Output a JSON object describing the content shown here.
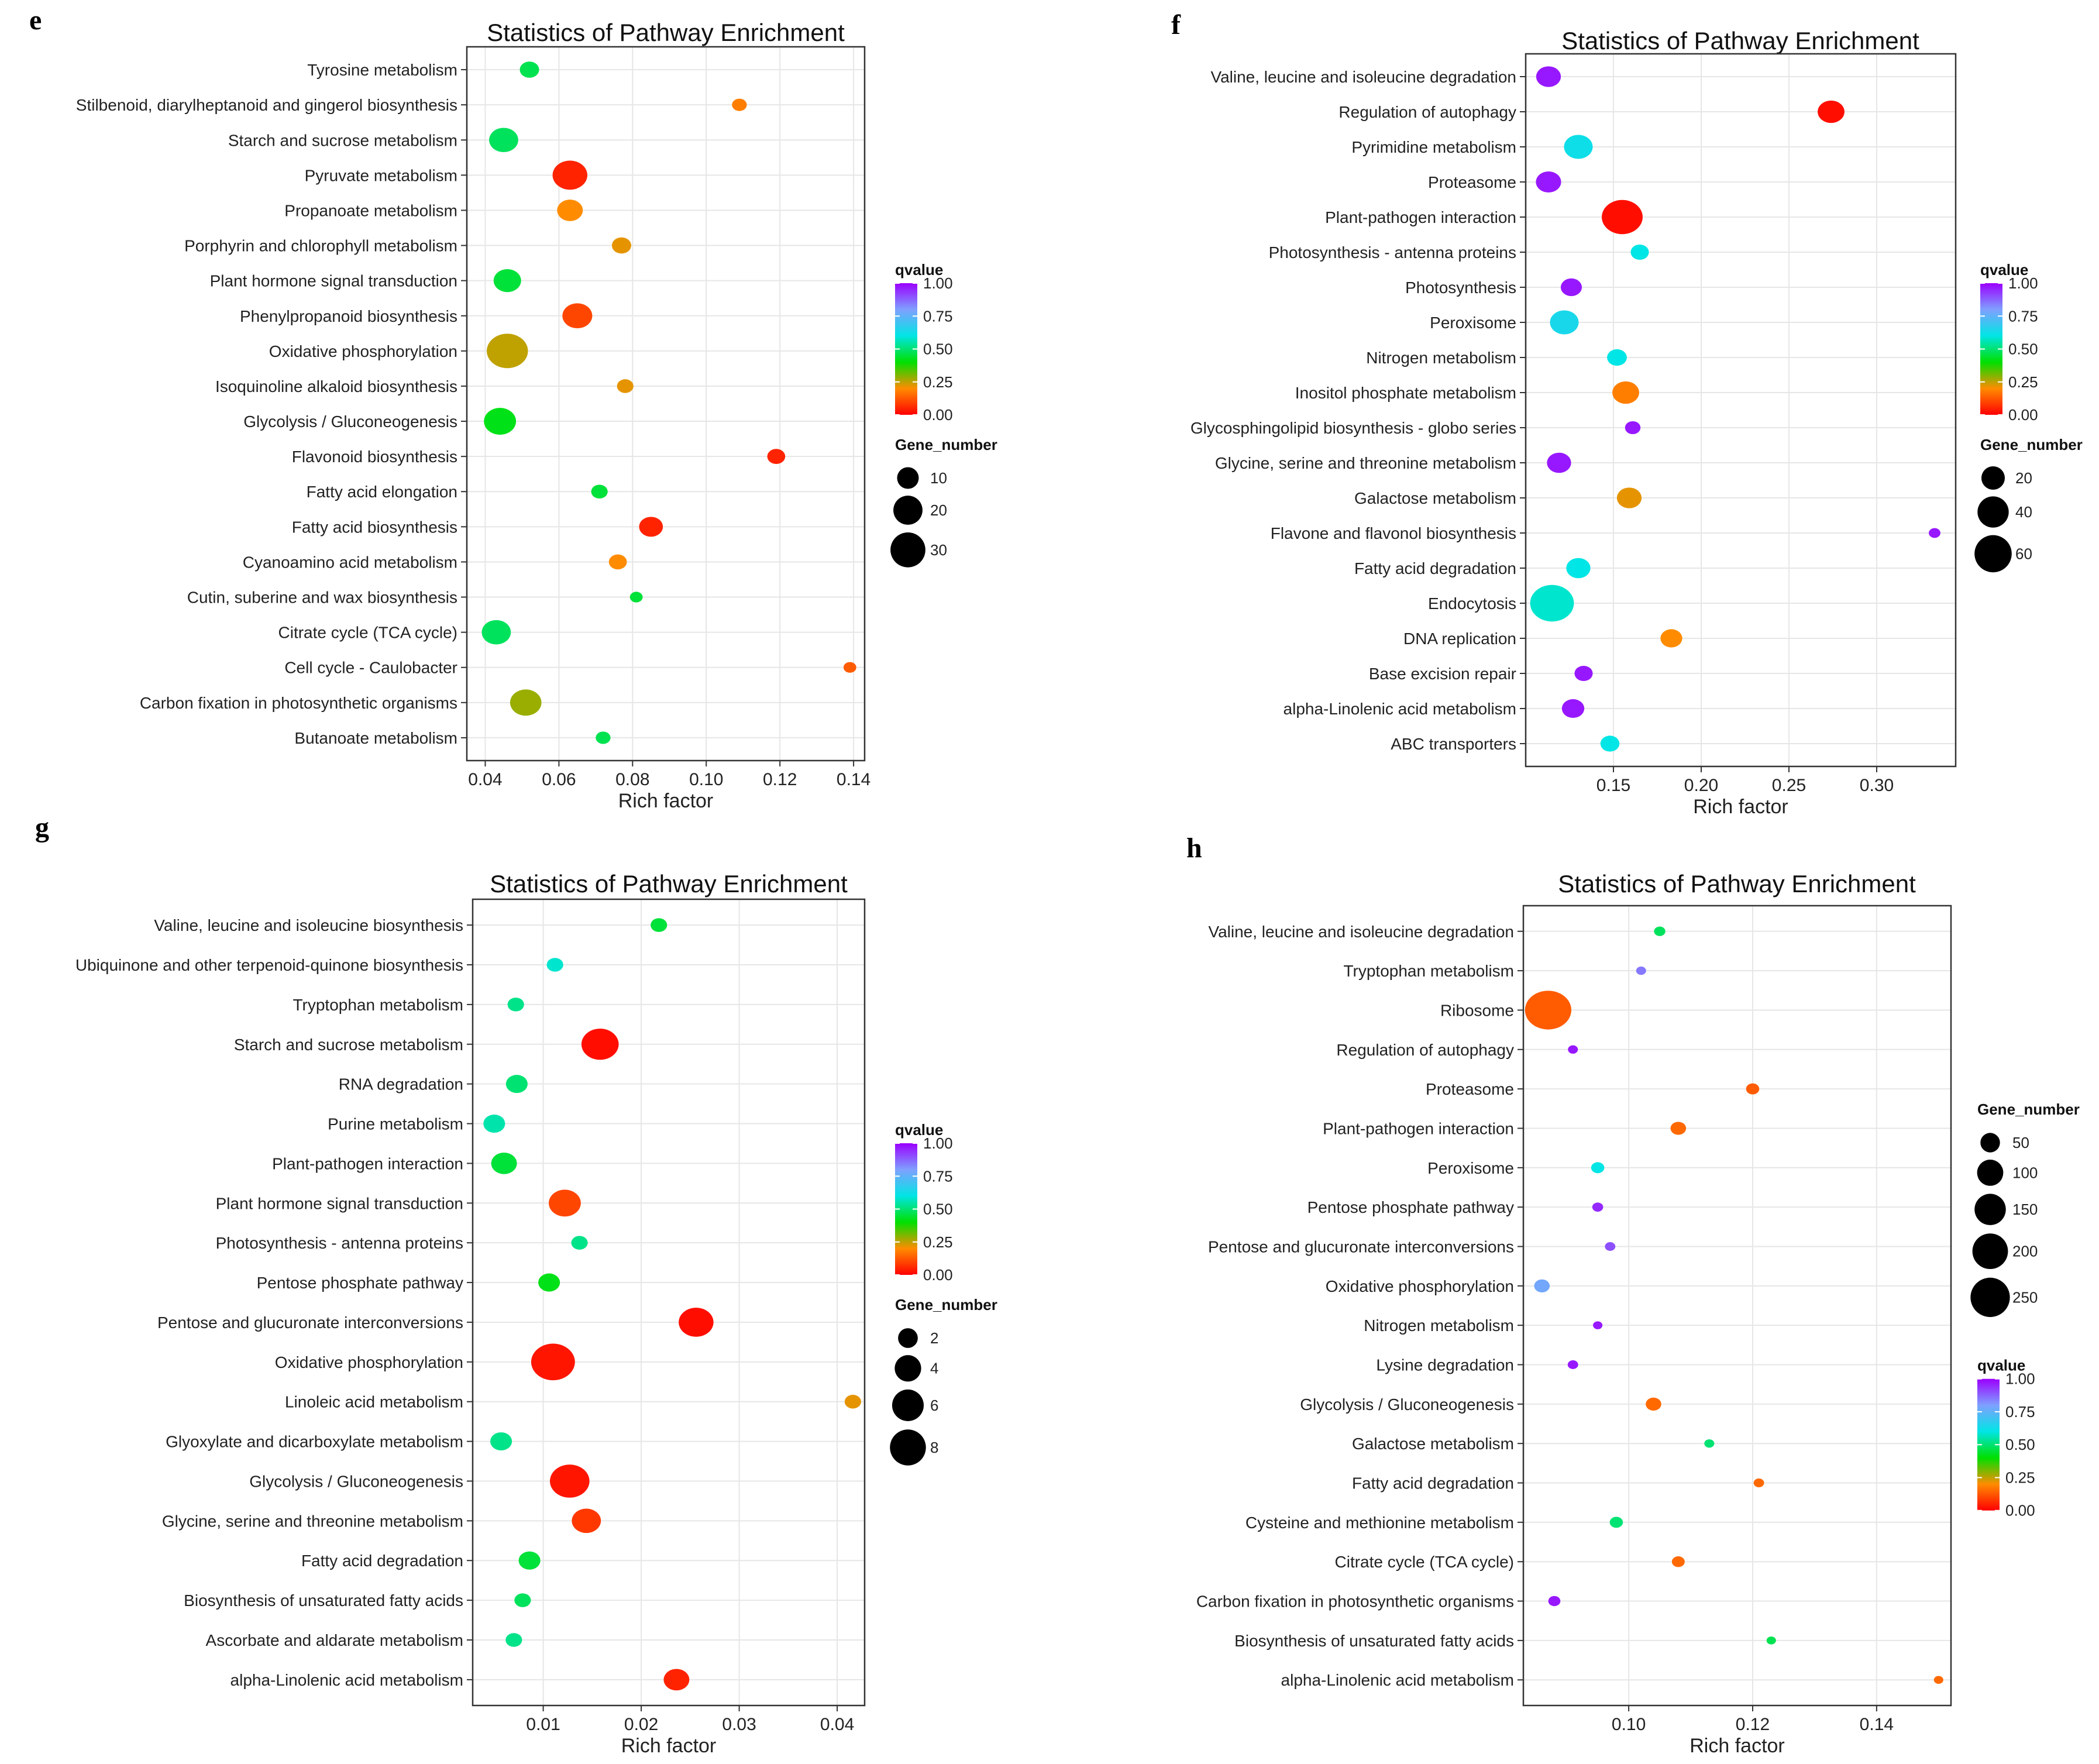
{
  "colors": {
    "scale": [
      "#ff0000",
      "#ff8c00",
      "#00e000",
      "#00e5e5",
      "#7fa0ff",
      "#9b00ff"
    ]
  },
  "chart_data": [
    {
      "panel": "e",
      "type": "scatter",
      "title": "Statistics of Pathway Enrichment",
      "xlabel": "Rich factor",
      "ylabel": "",
      "xlim": [
        0.035,
        0.143
      ],
      "xticks": [
        0.04,
        0.06,
        0.08,
        0.1,
        0.12,
        0.14
      ],
      "xtick_labels": [
        "0.04",
        "0.06",
        "0.08",
        "0.10",
        "0.12",
        "0.14"
      ],
      "size_range": [
        3,
        32
      ],
      "qvalue_legend": {
        "title": "qvalue",
        "labels": [
          "1.00",
          "0.75",
          "0.50",
          "0.25",
          "0.00"
        ],
        "values": [
          1.0,
          0.75,
          0.5,
          0.25,
          0.0
        ]
      },
      "gene_legend": {
        "title": "Gene_number",
        "labels": [
          "10",
          "20",
          "30"
        ],
        "values": [
          10,
          20,
          30
        ]
      },
      "legend_order": "q-first",
      "pathways": [
        {
          "name": "Tyrosine metabolism",
          "rich": 0.052,
          "genes": 6,
          "q": 0.47
        },
        {
          "name": "Stilbenoid, diarylheptanoid and gingerol biosynthesis",
          "rich": 0.109,
          "genes": 3,
          "q": 0.18
        },
        {
          "name": "Starch and sucrose metabolism",
          "rich": 0.045,
          "genes": 16,
          "q": 0.48
        },
        {
          "name": "Pyruvate metabolism",
          "rich": 0.063,
          "genes": 24,
          "q": 0.05
        },
        {
          "name": "Propanoate metabolism",
          "rich": 0.063,
          "genes": 12,
          "q": 0.2
        },
        {
          "name": "Porphyrin and chlorophyll metabolism",
          "rich": 0.077,
          "genes": 6,
          "q": 0.22
        },
        {
          "name": "Plant hormone signal transduction",
          "rich": 0.046,
          "genes": 14,
          "q": 0.45
        },
        {
          "name": "Phenylpropanoid biosynthesis",
          "rich": 0.065,
          "genes": 17,
          "q": 0.1
        },
        {
          "name": "Oxidative phosphorylation",
          "rich": 0.046,
          "genes": 35,
          "q": 0.25
        },
        {
          "name": "Isoquinoline alkaloid biosynthesis",
          "rich": 0.078,
          "genes": 4,
          "q": 0.22
        },
        {
          "name": "Glycolysis / Gluconeogenesis",
          "rich": 0.044,
          "genes": 20,
          "q": 0.42
        },
        {
          "name": "Flavonoid biosynthesis",
          "rich": 0.119,
          "genes": 5,
          "q": 0.05
        },
        {
          "name": "Fatty acid elongation",
          "rich": 0.071,
          "genes": 4,
          "q": 0.45
        },
        {
          "name": "Fatty acid biosynthesis",
          "rich": 0.085,
          "genes": 10,
          "q": 0.05
        },
        {
          "name": "Cyanoamino acid metabolism",
          "rich": 0.076,
          "genes": 5,
          "q": 0.2
        },
        {
          "name": "Cutin, suberine and wax biosynthesis",
          "rich": 0.081,
          "genes": 2,
          "q": 0.45
        },
        {
          "name": "Citrate cycle (TCA cycle)",
          "rich": 0.043,
          "genes": 16,
          "q": 0.48
        },
        {
          "name": "Cell cycle - Caulobacter",
          "rich": 0.139,
          "genes": 2,
          "q": 0.13
        },
        {
          "name": "Carbon fixation in photosynthetic organisms",
          "rich": 0.051,
          "genes": 19,
          "q": 0.28
        },
        {
          "name": "Butanoate metabolism",
          "rich": 0.072,
          "genes": 3,
          "q": 0.47
        }
      ]
    },
    {
      "panel": "f",
      "type": "scatter",
      "title": "Statistics of Pathway Enrichment",
      "xlabel": "Rich factor",
      "ylabel": "",
      "xlim": [
        0.1,
        0.345
      ],
      "xticks": [
        0.15,
        0.2,
        0.25,
        0.3
      ],
      "xtick_labels": [
        "0.15",
        "0.20",
        "0.25",
        "0.30"
      ],
      "size_range": [
        4,
        34
      ],
      "qvalue_legend": {
        "title": "qvalue",
        "labels": [
          "1.00",
          "0.75",
          "0.50",
          "0.25",
          "0.00"
        ],
        "values": [
          1.0,
          0.75,
          0.5,
          0.25,
          0.0
        ]
      },
      "gene_legend": {
        "title": "Gene_number",
        "labels": [
          "20",
          "40",
          "60"
        ],
        "values": [
          20,
          40,
          60
        ]
      },
      "legend_order": "q-first",
      "pathways": [
        {
          "name": "Valine, leucine and isoleucine degradation",
          "rich": 0.113,
          "genes": 18,
          "q": 0.97
        },
        {
          "name": "Regulation of autophagy",
          "rich": 0.274,
          "genes": 22,
          "q": 0.02
        },
        {
          "name": "Pyrimidine metabolism",
          "rich": 0.13,
          "genes": 26,
          "q": 0.62
        },
        {
          "name": "Proteasome",
          "rich": 0.113,
          "genes": 19,
          "q": 0.97
        },
        {
          "name": "Plant-pathogen interaction",
          "rich": 0.155,
          "genes": 60,
          "q": 0.02
        },
        {
          "name": "Photosynthesis - antenna proteins",
          "rich": 0.165,
          "genes": 8,
          "q": 0.6
        },
        {
          "name": "Photosynthesis",
          "rich": 0.126,
          "genes": 12,
          "q": 0.97
        },
        {
          "name": "Peroxisome",
          "rich": 0.122,
          "genes": 26,
          "q": 0.64
        },
        {
          "name": "Nitrogen metabolism",
          "rich": 0.152,
          "genes": 10,
          "q": 0.6
        },
        {
          "name": "Inositol phosphate metabolism",
          "rich": 0.157,
          "genes": 22,
          "q": 0.18
        },
        {
          "name": "Glycosphingolipid biosynthesis - globo series",
          "rich": 0.161,
          "genes": 5,
          "q": 0.97
        },
        {
          "name": "Glycine, serine and threonine metabolism",
          "rich": 0.119,
          "genes": 17,
          "q": 0.97
        },
        {
          "name": "Galactose metabolism",
          "rich": 0.159,
          "genes": 18,
          "q": 0.22
        },
        {
          "name": "Flavone and flavonol biosynthesis",
          "rich": 0.333,
          "genes": 2,
          "q": 0.97
        },
        {
          "name": "Fatty acid degradation",
          "rich": 0.13,
          "genes": 17,
          "q": 0.6
        },
        {
          "name": "Endocytosis",
          "rich": 0.115,
          "genes": 70,
          "q": 0.58
        },
        {
          "name": "DNA replication",
          "rich": 0.183,
          "genes": 13,
          "q": 0.2
        },
        {
          "name": "Base excision repair",
          "rich": 0.133,
          "genes": 8,
          "q": 0.97
        },
        {
          "name": "alpha-Linolenic acid metabolism",
          "rich": 0.127,
          "genes": 14,
          "q": 0.97
        },
        {
          "name": "ABC transporters",
          "rich": 0.148,
          "genes": 9,
          "q": 0.6
        }
      ]
    },
    {
      "panel": "g",
      "type": "scatter",
      "title": "Statistics of Pathway Enrichment",
      "xlabel": "Rich factor",
      "ylabel": "",
      "xlim": [
        0.0028,
        0.0428
      ],
      "xticks": [
        0.01,
        0.02,
        0.03,
        0.04
      ],
      "xtick_labels": [
        "0.01",
        "0.02",
        "0.03",
        "0.04"
      ],
      "size_range": [
        3,
        34
      ],
      "qvalue_legend": {
        "title": "qvalue",
        "labels": [
          "1.00",
          "0.75",
          "0.50",
          "0.25",
          "0.00"
        ],
        "values": [
          1.0,
          0.75,
          0.5,
          0.25,
          0.0
        ]
      },
      "gene_legend": {
        "title": "Gene_number",
        "labels": [
          "2",
          "4",
          "6",
          "8"
        ],
        "values": [
          2,
          4,
          6,
          8
        ]
      },
      "legend_order": "q-first",
      "pathways": [
        {
          "name": "Valine, leucine and isoleucine biosynthesis",
          "rich": 0.0218,
          "genes": 1,
          "q": 0.45
        },
        {
          "name": "Ubiquinone and other terpenoid-quinone biosynthesis",
          "rich": 0.0112,
          "genes": 1,
          "q": 0.58
        },
        {
          "name": "Tryptophan metabolism",
          "rich": 0.0072,
          "genes": 1,
          "q": 0.52
        },
        {
          "name": "Starch and sucrose metabolism",
          "rich": 0.0158,
          "genes": 7,
          "q": 0.02
        },
        {
          "name": "RNA degradation",
          "rich": 0.0073,
          "genes": 2,
          "q": 0.5
        },
        {
          "name": "Purine metabolism",
          "rich": 0.005,
          "genes": 2,
          "q": 0.55
        },
        {
          "name": "Plant-pathogen interaction",
          "rich": 0.006,
          "genes": 3,
          "q": 0.45
        },
        {
          "name": "Plant hormone signal transduction",
          "rich": 0.0122,
          "genes": 5,
          "q": 0.1
        },
        {
          "name": "Photosynthesis - antenna proteins",
          "rich": 0.0137,
          "genes": 1,
          "q": 0.52
        },
        {
          "name": "Pentose phosphate pathway",
          "rich": 0.0106,
          "genes": 2,
          "q": 0.42
        },
        {
          "name": "Pentose and glucuronate interconversions",
          "rich": 0.0256,
          "genes": 6,
          "q": 0.02
        },
        {
          "name": "Oxidative phosphorylation",
          "rich": 0.011,
          "genes": 10,
          "q": 0.03
        },
        {
          "name": "Linoleic acid metabolism",
          "rich": 0.0416,
          "genes": 1,
          "q": 0.22
        },
        {
          "name": "Glyoxylate and dicarboxylate metabolism",
          "rich": 0.0057,
          "genes": 2,
          "q": 0.52
        },
        {
          "name": "Glycolysis / Gluconeogenesis",
          "rich": 0.0127,
          "genes": 8,
          "q": 0.03
        },
        {
          "name": "Glycine, serine and threonine metabolism",
          "rich": 0.0144,
          "genes": 4,
          "q": 0.08
        },
        {
          "name": "Fatty acid degradation",
          "rich": 0.0086,
          "genes": 2,
          "q": 0.45
        },
        {
          "name": "Biosynthesis of unsaturated fatty acids",
          "rich": 0.0079,
          "genes": 1,
          "q": 0.48
        },
        {
          "name": "Ascorbate and aldarate metabolism",
          "rich": 0.007,
          "genes": 1,
          "q": 0.52
        },
        {
          "name": "alpha-Linolenic acid metabolism",
          "rich": 0.0236,
          "genes": 3,
          "q": 0.05
        }
      ]
    },
    {
      "panel": "h",
      "type": "scatter",
      "title": "Statistics of Pathway Enrichment",
      "xlabel": "Rich factor",
      "ylabel": "",
      "xlim": [
        0.083,
        0.152
      ],
      "xticks": [
        0.1,
        0.12,
        0.14
      ],
      "xtick_labels": [
        "0.10",
        "0.12",
        "0.14"
      ],
      "size_range": [
        3,
        36
      ],
      "qvalue_legend": {
        "title": "qvalue",
        "labels": [
          "1.00",
          "0.75",
          "0.50",
          "0.25",
          "0.00"
        ],
        "values": [
          1.0,
          0.75,
          0.5,
          0.25,
          0.0
        ]
      },
      "gene_legend": {
        "title": "Gene_number",
        "labels": [
          "50",
          "100",
          "150",
          "200",
          "250"
        ],
        "values": [
          50,
          100,
          150,
          200,
          250
        ]
      },
      "legend_order": "genes-first",
      "pathways": [
        {
          "name": "Valine, leucine and isoleucine degradation",
          "rich": 0.105,
          "genes": 9,
          "q": 0.48
        },
        {
          "name": "Tryptophan metabolism",
          "rich": 0.102,
          "genes": 6,
          "q": 0.85
        },
        {
          "name": "Ribosome",
          "rich": 0.087,
          "genes": 290,
          "q": 0.13
        },
        {
          "name": "Regulation of autophagy",
          "rich": 0.091,
          "genes": 6,
          "q": 0.97
        },
        {
          "name": "Proteasome",
          "rich": 0.12,
          "genes": 14,
          "q": 0.13
        },
        {
          "name": "Plant-pathogen interaction",
          "rich": 0.108,
          "genes": 22,
          "q": 0.15
        },
        {
          "name": "Peroxisome",
          "rich": 0.095,
          "genes": 14,
          "q": 0.6
        },
        {
          "name": "Pentose phosphate pathway",
          "rich": 0.095,
          "genes": 8,
          "q": 0.95
        },
        {
          "name": "Pentose and glucuronate interconversions",
          "rich": 0.097,
          "genes": 7,
          "q": 0.9
        },
        {
          "name": "Oxidative phosphorylation",
          "rich": 0.086,
          "genes": 22,
          "q": 0.78
        },
        {
          "name": "Nitrogen metabolism",
          "rich": 0.095,
          "genes": 5,
          "q": 0.97
        },
        {
          "name": "Lysine degradation",
          "rich": 0.091,
          "genes": 7,
          "q": 0.97
        },
        {
          "name": "Glycolysis / Gluconeogenesis",
          "rich": 0.104,
          "genes": 22,
          "q": 0.15
        },
        {
          "name": "Galactose metabolism",
          "rich": 0.113,
          "genes": 6,
          "q": 0.5
        },
        {
          "name": "Fatty acid degradation",
          "rich": 0.121,
          "genes": 7,
          "q": 0.15
        },
        {
          "name": "Cysteine and methionine metabolism",
          "rich": 0.098,
          "genes": 14,
          "q": 0.5
        },
        {
          "name": "Citrate cycle (TCA cycle)",
          "rich": 0.108,
          "genes": 13,
          "q": 0.15
        },
        {
          "name": "Carbon fixation in photosynthetic organisms",
          "rich": 0.088,
          "genes": 11,
          "q": 0.97
        },
        {
          "name": "Biosynthesis of unsaturated fatty acids",
          "rich": 0.123,
          "genes": 5,
          "q": 0.47
        },
        {
          "name": "alpha-Linolenic acid metabolism",
          "rich": 0.15,
          "genes": 5,
          "q": 0.15
        }
      ]
    }
  ]
}
